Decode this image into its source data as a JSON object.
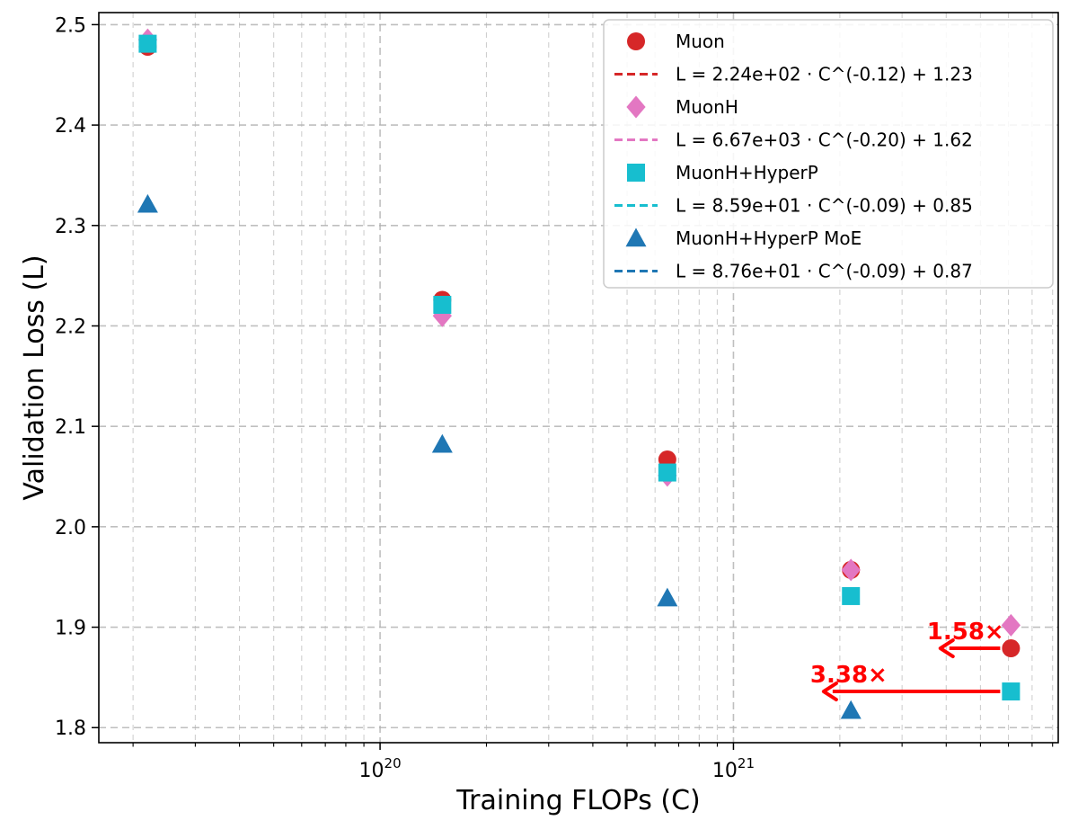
{
  "chart_data": {
    "type": "line",
    "xscale": "log",
    "xlabel": "Training FLOPs (C)",
    "ylabel": "Validation Loss (L)",
    "xlim": [
      1.6e+19,
      8.3e+21
    ],
    "ylim": [
      1.785,
      2.512
    ],
    "grid": true,
    "legend_position": "top-right",
    "x_major_ticks": [
      1e+20,
      1e+21
    ],
    "x_major_tick_labels": [
      {
        "base": "10",
        "exp": "20"
      },
      {
        "base": "10",
        "exp": "21"
      }
    ],
    "y_ticks": [
      1.8,
      1.9,
      2.0,
      2.1,
      2.2,
      2.3,
      2.4,
      2.5
    ],
    "y_tick_labels": [
      "1.8",
      "1.9",
      "2.0",
      "2.1",
      "2.2",
      "2.3",
      "2.4",
      "2.5"
    ],
    "series": [
      {
        "name": "Muon",
        "marker": "circle",
        "color": "#d62728",
        "x": [
          2.2e+19,
          1.5e+20,
          6.5e+20,
          2.15e+21,
          6.1e+21
        ],
        "y": [
          2.478,
          2.226,
          2.067,
          1.957,
          1.879
        ],
        "fit": {
          "label": "L = 2.24e+02 · C^(-0.12) + 1.23",
          "a": 224,
          "b": -0.12,
          "c": 1.23,
          "scale": 1e+16
        }
      },
      {
        "name": "MuonH",
        "marker": "diamond",
        "color": "#e377c2",
        "x": [
          2.2e+19,
          1.5e+20,
          6.5e+20,
          2.15e+21,
          6.1e+21
        ],
        "y": [
          2.485,
          2.21,
          2.051,
          1.957,
          1.902
        ],
        "fit": {
          "label": "L = 6.67e+03 · C^(-0.20) + 1.62",
          "a": 6670,
          "b": -0.2,
          "c": 1.62,
          "scale": 1e+16
        }
      },
      {
        "name": "MuonH+HyperP",
        "marker": "square",
        "color": "#17becf",
        "x": [
          2.2e+19,
          1.5e+20,
          6.5e+20,
          2.15e+21,
          6.1e+21
        ],
        "y": [
          2.481,
          2.221,
          2.054,
          1.931,
          1.836
        ],
        "fit": {
          "label": "L = 8.59e+01 · C^(-0.09) + 0.85",
          "a": 85.9,
          "b": -0.09,
          "c": 0.85,
          "scale": 1e+16
        }
      },
      {
        "name": "MuonH+HyperP MoE",
        "marker": "triangle",
        "color": "#1f77b4",
        "x": [
          2.2e+19,
          1.5e+20,
          6.5e+20,
          2.15e+21
        ],
        "y": [
          2.321,
          2.082,
          1.929,
          1.817
        ],
        "fit": {
          "label": "L = 8.76e+01 · C^(-0.09) + 0.87",
          "a": 87.6,
          "b": -0.09,
          "c": 0.87,
          "scale": 1e+16
        }
      }
    ],
    "annotations": [
      {
        "text": "1.58×",
        "color": "#ff0000",
        "arrow_from": [
          6.1e+21,
          1.879
        ],
        "arrow_to": [
          3.85e+21,
          1.879
        ]
      },
      {
        "text": "3.38×",
        "color": "#ff0000",
        "arrow_from": [
          6.1e+21,
          1.836
        ],
        "arrow_to": [
          1.8e+21,
          1.836
        ]
      }
    ]
  }
}
